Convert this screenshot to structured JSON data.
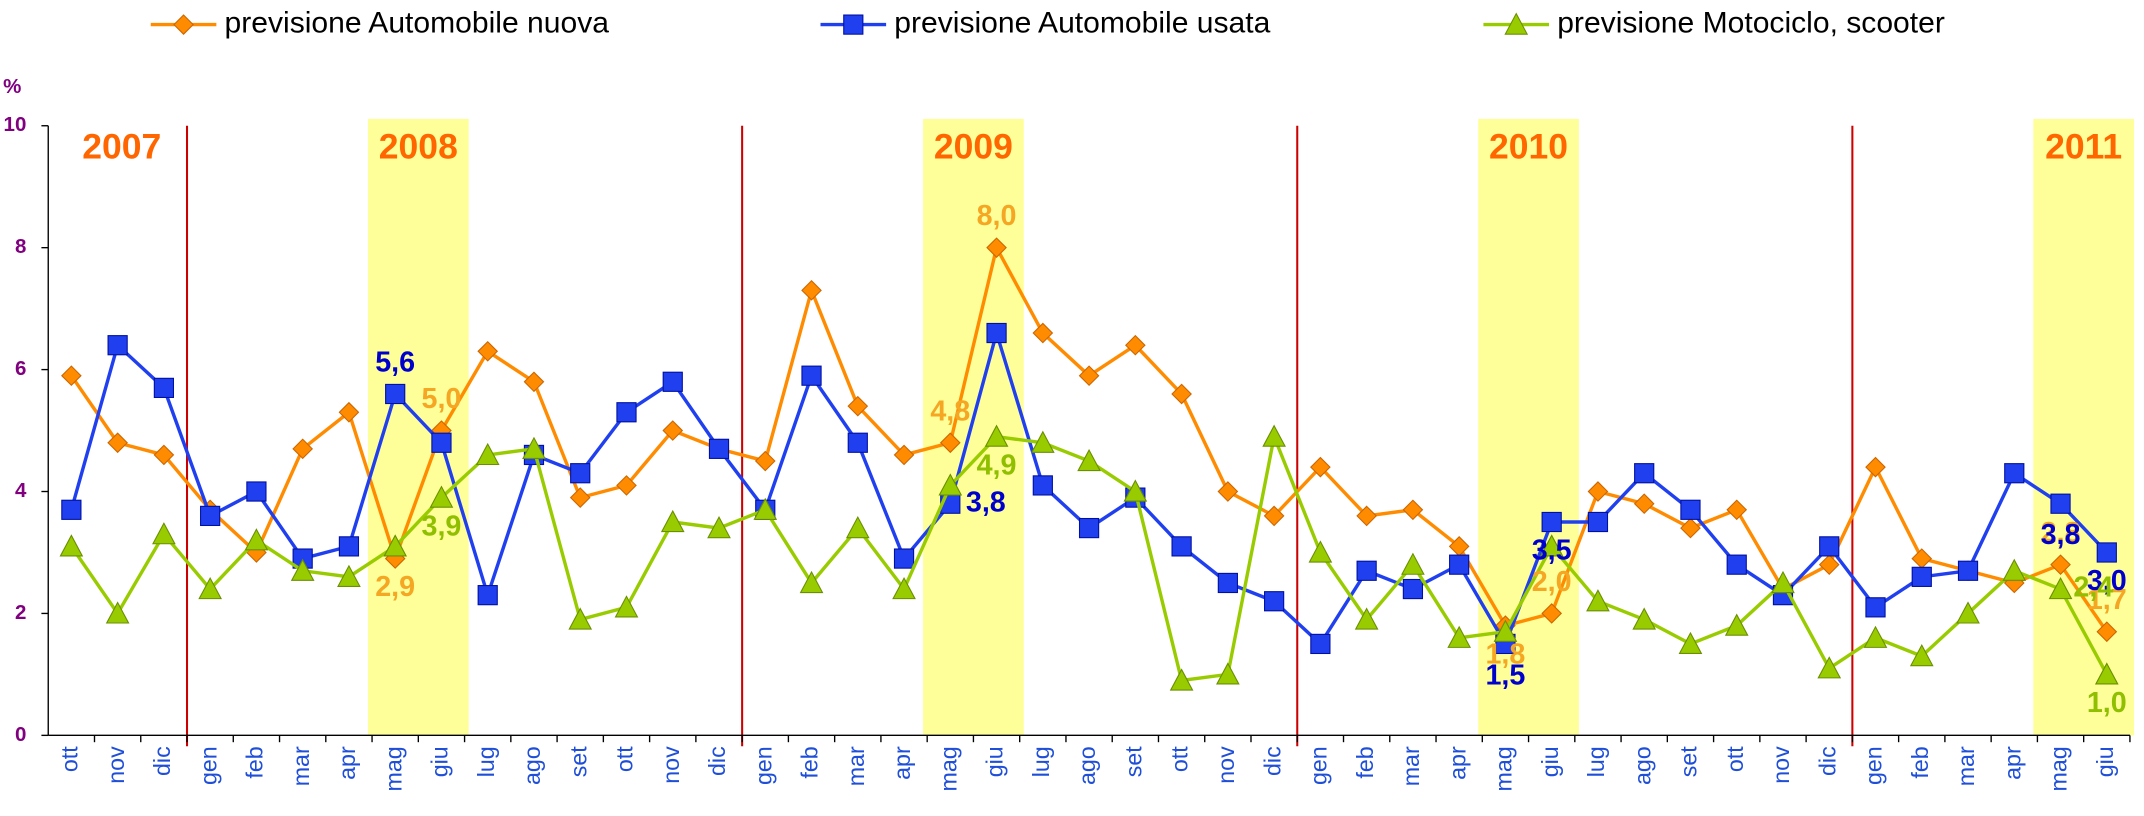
{
  "chart_data": {
    "type": "line",
    "y_axis_label": "%",
    "years": [
      "2007",
      "2008",
      "2009",
      "2010",
      "2011"
    ],
    "categories": [
      "ott",
      "nov",
      "dic",
      "gen",
      "feb",
      "mar",
      "apr",
      "mag",
      "giu",
      "lug",
      "ago",
      "set",
      "ott",
      "nov",
      "dic",
      "gen",
      "feb",
      "mar",
      "apr",
      "mag",
      "giu",
      "lug",
      "ago",
      "set",
      "ott",
      "nov",
      "dic",
      "gen",
      "feb",
      "mar",
      "apr",
      "mag",
      "giu",
      "lug",
      "ago",
      "set",
      "ott",
      "nov",
      "dic",
      "gen",
      "feb",
      "mar",
      "apr",
      "mag",
      "giu"
    ],
    "ylim": [
      0,
      10
    ],
    "yticks": [
      0,
      2,
      4,
      6,
      8,
      10
    ],
    "series": [
      {
        "name": "previsione Automobile nuova",
        "color": "#ff8c00",
        "label_color": "#f5a623",
        "marker": "diamond",
        "values": [
          5.9,
          4.8,
          4.6,
          3.7,
          3.0,
          4.7,
          5.3,
          2.9,
          5.0,
          6.3,
          5.8,
          3.9,
          4.1,
          5.0,
          4.7,
          4.5,
          7.3,
          5.4,
          4.6,
          4.8,
          8.0,
          6.6,
          5.9,
          6.4,
          5.6,
          4.0,
          3.6,
          4.4,
          3.6,
          3.7,
          3.1,
          1.8,
          2.0,
          4.0,
          3.8,
          3.4,
          3.7,
          2.4,
          2.8,
          4.4,
          2.9,
          2.7,
          2.5,
          2.8,
          1.7
        ],
        "value_labels": [
          null,
          null,
          null,
          null,
          null,
          null,
          null,
          "2,9",
          "5,0",
          null,
          null,
          null,
          null,
          null,
          null,
          null,
          null,
          null,
          null,
          "4,8",
          "8,0",
          null,
          null,
          null,
          null,
          null,
          null,
          null,
          null,
          null,
          null,
          "1,8",
          "2,0",
          null,
          null,
          null,
          null,
          null,
          null,
          null,
          null,
          null,
          null,
          "2,8",
          "1,7"
        ]
      },
      {
        "name": "previsione Automobile usata",
        "color": "#2040f0",
        "label_color": "#0000cc",
        "marker": "square",
        "values": [
          3.7,
          6.4,
          5.7,
          3.6,
          4.0,
          2.9,
          3.1,
          5.6,
          4.8,
          2.3,
          4.6,
          4.3,
          5.3,
          5.8,
          4.7,
          3.7,
          5.9,
          4.8,
          2.9,
          3.8,
          6.6,
          4.1,
          3.4,
          3.9,
          3.1,
          2.5,
          2.2,
          1.5,
          2.7,
          2.4,
          2.8,
          1.5,
          3.5,
          3.5,
          4.3,
          3.7,
          2.8,
          2.3,
          3.1,
          2.1,
          2.6,
          2.7,
          4.3,
          3.8,
          3.0
        ],
        "value_labels": [
          null,
          null,
          null,
          null,
          null,
          null,
          null,
          "5,6",
          null,
          null,
          null,
          null,
          null,
          null,
          null,
          null,
          null,
          null,
          null,
          "3,8",
          null,
          null,
          null,
          null,
          null,
          null,
          null,
          null,
          null,
          null,
          null,
          "1,5",
          "3,5",
          null,
          null,
          null,
          null,
          null,
          null,
          null,
          null,
          null,
          null,
          "3,8",
          "3,0"
        ]
      },
      {
        "name": "previsione Motociclo, scooter",
        "color": "#99cc00",
        "label_color": "#8fbf00",
        "marker": "triangle",
        "values": [
          3.1,
          2.0,
          3.3,
          2.4,
          3.2,
          2.7,
          2.6,
          3.1,
          3.9,
          4.6,
          4.7,
          1.9,
          2.1,
          3.5,
          3.4,
          3.7,
          2.5,
          3.4,
          2.4,
          4.1,
          4.9,
          4.8,
          4.5,
          4.0,
          0.9,
          1.0,
          4.9,
          3.0,
          1.9,
          2.8,
          1.6,
          1.7,
          3.1,
          2.2,
          1.9,
          1.5,
          1.8,
          2.5,
          1.1,
          1.6,
          1.3,
          2.0,
          2.7,
          2.4,
          1.0
        ],
        "value_labels": [
          null,
          null,
          null,
          null,
          null,
          null,
          null,
          null,
          "3,9",
          null,
          null,
          null,
          null,
          null,
          null,
          null,
          null,
          null,
          null,
          null,
          "4,9",
          null,
          null,
          null,
          null,
          null,
          null,
          null,
          null,
          null,
          null,
          null,
          null,
          null,
          null,
          null,
          null,
          null,
          null,
          null,
          null,
          null,
          null,
          "2,4",
          "1,0"
        ]
      }
    ]
  }
}
